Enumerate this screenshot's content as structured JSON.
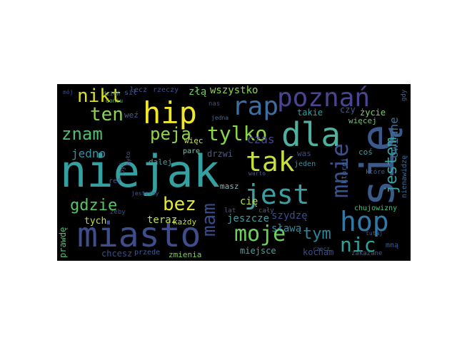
{
  "wordcloud": {
    "background": "#000000",
    "words": [
      {
        "id": "niejak",
        "text": "niejak",
        "color": "#35a0a0"
      },
      {
        "id": "sie",
        "text": "się",
        "color": "#3b5a8c"
      },
      {
        "id": "miasto",
        "text": "miasto",
        "color": "#3d4e8a"
      },
      {
        "id": "dla",
        "text": "dla",
        "color": "#4fb0a0"
      },
      {
        "id": "hip",
        "text": "hip",
        "color": "#f0e72a"
      },
      {
        "id": "poznan",
        "text": "poznań",
        "color": "#4a4593"
      },
      {
        "id": "tak",
        "text": "tak",
        "color": "#c6df3a"
      },
      {
        "id": "jest",
        "text": "jest",
        "color": "#3aa0a4"
      },
      {
        "id": "hop",
        "text": "hop",
        "color": "#2f79a6"
      },
      {
        "id": "rap",
        "text": "rap",
        "color": "#3f6fa0"
      },
      {
        "id": "moje",
        "text": "moje",
        "color": "#6dd15b"
      },
      {
        "id": "tylko",
        "text": "tylko",
        "color": "#8bd646"
      },
      {
        "id": "mnie",
        "text": "mnie",
        "color": "#3a4f8c"
      },
      {
        "id": "bez",
        "text": "bez",
        "color": "#e7e82a"
      },
      {
        "id": "nic",
        "text": "nic",
        "color": "#2ba39a"
      },
      {
        "id": "nikt",
        "text": "nikt",
        "color": "#dbe21e"
      },
      {
        "id": "ten",
        "text": "ten",
        "color": "#8bd44f"
      },
      {
        "id": "znam",
        "text": "znam",
        "color": "#4ac16c"
      },
      {
        "id": "peja",
        "text": "peja",
        "color": "#8fd54a"
      },
      {
        "id": "gdzie",
        "text": "gdzie",
        "color": "#57c466"
      },
      {
        "id": "jestem",
        "text": "jestem",
        "color": "#35a4a0"
      },
      {
        "id": "mam",
        "text": "mam",
        "color": "#3b4a8a"
      },
      {
        "id": "tym",
        "text": "tym",
        "color": "#27889a"
      },
      {
        "id": "wszystko",
        "text": "wszystko",
        "color": "#8ad64c"
      },
      {
        "id": "zla",
        "text": "złą",
        "color": "#6fcf5b"
      },
      {
        "id": "owiane",
        "text": "owiane",
        "color": "#3e6f96"
      },
      {
        "id": "czas",
        "text": "czas",
        "color": "#4b4a8e"
      },
      {
        "id": "jedno",
        "text": "jedno",
        "color": "#3a8fa0"
      },
      {
        "id": "szydze",
        "text": "szydzę",
        "color": "#3a4f8c"
      },
      {
        "id": "teraz",
        "text": "teraz",
        "color": "#bfe04a"
      },
      {
        "id": "slawa",
        "text": "sławą",
        "color": "#3c8ca0"
      },
      {
        "id": "jeszcze",
        "text": "jeszcze",
        "color": "#3e9ba2"
      },
      {
        "id": "tych",
        "text": "tych",
        "color": "#c2de3f"
      },
      {
        "id": "prawde",
        "text": "prawdę",
        "color": "#4fbf76"
      },
      {
        "id": "chcesz",
        "text": "chcesz",
        "color": "#39508d"
      },
      {
        "id": "kocham",
        "text": "kocham",
        "color": "#3b4c8c"
      },
      {
        "id": "miejsce",
        "text": "miejsce",
        "color": "#4da2a0"
      },
      {
        "id": "zmienia",
        "text": "zmienia",
        "color": "#83cf53"
      },
      {
        "id": "przede",
        "text": "przede",
        "color": "#3a5f94"
      },
      {
        "id": "cie",
        "text": "cię",
        "color": "#b6dd4a"
      },
      {
        "id": "masz",
        "text": "masz",
        "color": "#7fb9b7"
      },
      {
        "id": "drzwi",
        "text": "drzwi",
        "color": "#4a5a8f"
      },
      {
        "id": "dalej",
        "text": "dalej",
        "color": "#4aa0a0"
      },
      {
        "id": "wiec",
        "text": "więc",
        "color": "#c8e04a"
      },
      {
        "id": "pare",
        "text": "parę",
        "color": "#7fc0b0"
      },
      {
        "id": "takie",
        "text": "takie",
        "color": "#2fa0a0"
      },
      {
        "id": "czy",
        "text": "czy",
        "color": "#3c5b90"
      },
      {
        "id": "zycie",
        "text": "życie",
        "color": "#7fcf6a"
      },
      {
        "id": "wiecej",
        "text": "więcej",
        "color": "#6cc56b"
      },
      {
        "id": "jeden",
        "text": "jeden",
        "color": "#3f8fa0"
      },
      {
        "id": "was",
        "text": "was",
        "color": "#3a4f8c"
      },
      {
        "id": "cos",
        "text": "coś",
        "color": "#3aa0a0"
      },
      {
        "id": "ktorej",
        "text": "której",
        "color": "#3f6f9a"
      },
      {
        "id": "nienawidze",
        "text": "nienawidzę",
        "color": "#3a6f9a"
      },
      {
        "id": "chujowizny",
        "text": "chujowizny",
        "color": "#3fc480"
      },
      {
        "id": "lecz",
        "text": "lecz",
        "color": "#4a5a8f"
      },
      {
        "id": "rzeczy",
        "text": "rzeczy",
        "color": "#3a4f8c"
      },
      {
        "id": "wez",
        "text": "weź",
        "color": "#4d5b8f"
      },
      {
        "id": "sil",
        "text": "sił",
        "color": "#4a5a8f"
      },
      {
        "id": "doniu",
        "text": "doniu",
        "color": "#5ab86a"
      },
      {
        "id": "dzien",
        "text": "dzień",
        "color": "#3f7f9a"
      },
      {
        "id": "moj",
        "text": "mój",
        "color": "#3a4f8c"
      },
      {
        "id": "nas",
        "text": "nas",
        "color": "#3a4f8c"
      },
      {
        "id": "jedna",
        "text": "jedna",
        "color": "#4a6a95"
      },
      {
        "id": "ref",
        "text": "ref",
        "color": "#4a5a8f"
      },
      {
        "id": "zeby",
        "text": "żeby",
        "color": "#3a4f8c"
      },
      {
        "id": "kazdy",
        "text": "każdy",
        "color": "#c6df3a"
      },
      {
        "id": "lat",
        "text": "lat",
        "color": "#4a5a8f"
      },
      {
        "id": "caly",
        "text": "cały",
        "color": "#4a5a8f"
      },
      {
        "id": "jestesmy",
        "text": "jesteśmy",
        "color": "#4a5a8f"
      },
      {
        "id": "byc",
        "text": "być",
        "color": "#4a5a8f"
      },
      {
        "id": "mna",
        "text": "mną",
        "color": "#3a5f94"
      },
      {
        "id": "zakazane",
        "text": "zakazane",
        "color": "#3a5f94"
      },
      {
        "id": "tutaj",
        "text": "tutaj",
        "color": "#3a5f94"
      },
      {
        "id": "ktore",
        "text": "które",
        "color": "#3a5f94"
      },
      {
        "id": "gdy",
        "text": "gdy",
        "color": "#3a5f94"
      },
      {
        "id": "rzecz",
        "text": "rzecz",
        "color": "#3a5f94"
      },
      {
        "id": "warto",
        "text": "warto",
        "color": "#4a5a8f"
      },
      {
        "id": "bylo",
        "text": "było",
        "color": "#4a5a8f"
      }
    ]
  }
}
